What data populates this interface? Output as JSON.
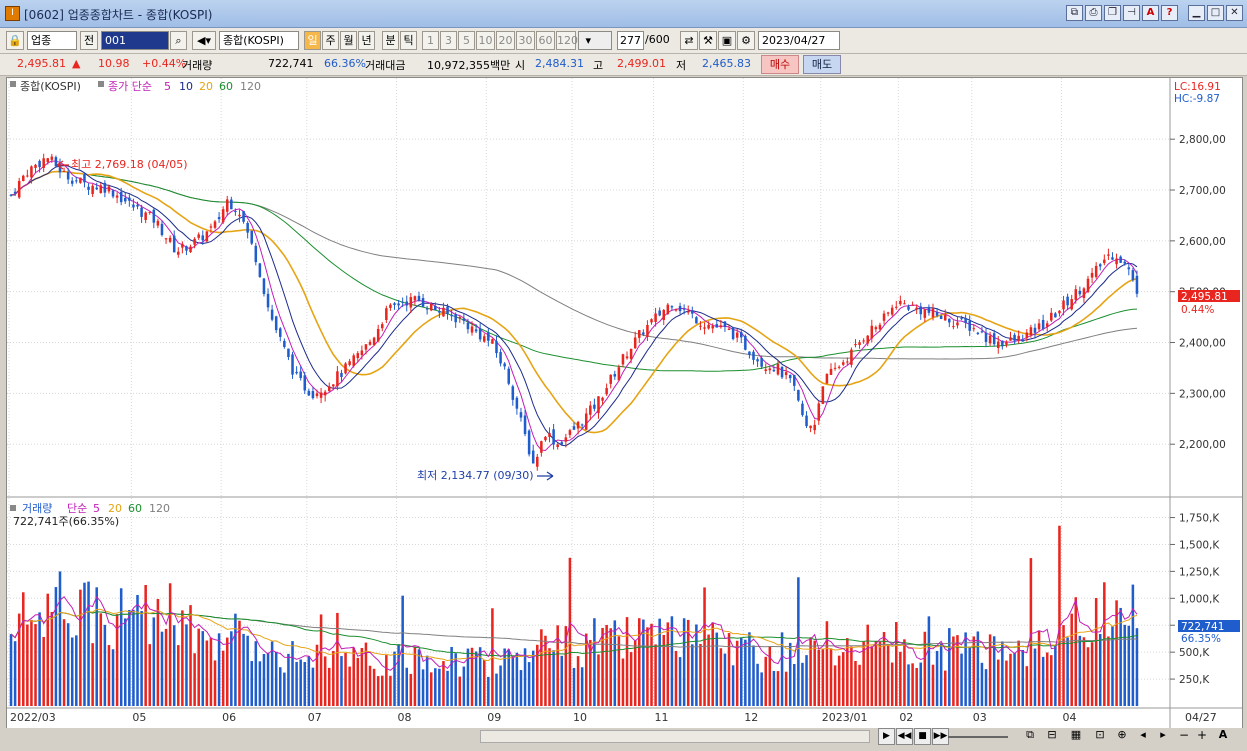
{
  "window": {
    "title": "[0602] 업종종합차트 - 종합(KOSPI)"
  },
  "toolbar": {
    "market": "업종",
    "prev": "전",
    "code": "001",
    "index_name": "종합(KOSPI)",
    "periods": [
      "일",
      "주",
      "월",
      "년",
      "분",
      "틱"
    ],
    "selected_period": "일",
    "minutes": [
      "1",
      "3",
      "5",
      "10",
      "20",
      "30",
      "60",
      "120"
    ],
    "count": "277",
    "count_max": "/600",
    "date": "2023/04/27"
  },
  "quote": {
    "price": "2,495.81",
    "arrow": "▲",
    "change": "10.98",
    "change_pct": "+0.44%",
    "volume_label": "거래량",
    "volume": "722,741",
    "volume_ratio": "66.36%",
    "amount_label": "거래대금",
    "amount": "10,972,355백만",
    "open_label": "시",
    "open": "2,484.31",
    "high_label": "고",
    "high": "2,499.01",
    "low_label": "저",
    "low": "2,465.83",
    "buy_label": "매수",
    "sell_label": "매도"
  },
  "price_panel": {
    "legend_name": "종합(KOSPI)",
    "legend_ma": "종가 단순",
    "ma_periods": [
      "5",
      "10",
      "20",
      "60",
      "120"
    ],
    "lc_label": "LC:16.91",
    "hc_label": "HC:-9.87",
    "max_label": "최고 2,769.18 (04/05)",
    "min_label": "최저 2,134.77 (09/30)",
    "last_price_tag": "2,495.81",
    "last_pct_tag": "0.44%"
  },
  "volume_panel": {
    "legend_name": "거래량",
    "legend_ma": "단순",
    "ma_periods": [
      "5",
      "20",
      "60",
      "120"
    ],
    "current_label": "722,741주(66.35%)",
    "last_tag": "722,741",
    "last_pct_tag": "66.35%"
  },
  "colors": {
    "up": "#e8251f",
    "down": "#1f5ccc",
    "ma5": "#c21fb8",
    "ma10": "#1b2a8c",
    "ma20": "#e6a415",
    "ma60": "#1b8f2e",
    "ma120": "#7f7f7f"
  },
  "chart_data": {
    "type": "candlestick",
    "title": "종합(KOSPI)",
    "price_axis": {
      "ticks": [
        "2,800,00",
        "2,700,00",
        "2,600,00",
        "2,500,00",
        "2,400,00",
        "2,300,00",
        "2,200,00"
      ],
      "values": [
        2800,
        2700,
        2600,
        2500,
        2400,
        2300,
        2200
      ],
      "range": [
        2104,
        2881
      ]
    },
    "volume_axis": {
      "ticks": [
        "1,750,K",
        "1,500,K",
        "1,250,K",
        "1,000,K",
        "750,K",
        "500,K",
        "250,K"
      ],
      "values": [
        1750,
        1500,
        1250,
        1000,
        750,
        500,
        250
      ],
      "range": [
        0,
        1820
      ],
      "unit": "K shares"
    },
    "x_labels": [
      "2022/03",
      "05",
      "06",
      "07",
      "08",
      "09",
      "10",
      "11",
      "12",
      "2023/01",
      "02",
      "03",
      "04"
    ],
    "last_label": "04/27",
    "bars": 277,
    "close_path": [
      [
        0,
        2690
      ],
      [
        5,
        2735
      ],
      [
        12,
        2765
      ],
      [
        18,
        2730
      ],
      [
        25,
        2710
      ],
      [
        32,
        2705
      ],
      [
        40,
        2670
      ],
      [
        48,
        2640
      ],
      [
        55,
        2580
      ],
      [
        62,
        2600
      ],
      [
        68,
        2630
      ],
      [
        72,
        2680
      ],
      [
        76,
        2660
      ],
      [
        82,
        2560
      ],
      [
        86,
        2460
      ],
      [
        90,
        2400
      ],
      [
        95,
        2330
      ],
      [
        100,
        2300
      ],
      [
        105,
        2315
      ],
      [
        110,
        2340
      ],
      [
        115,
        2370
      ],
      [
        120,
        2405
      ],
      [
        125,
        2460
      ],
      [
        130,
        2480
      ],
      [
        135,
        2485
      ],
      [
        140,
        2470
      ],
      [
        145,
        2455
      ],
      [
        150,
        2445
      ],
      [
        155,
        2420
      ],
      [
        160,
        2400
      ],
      [
        165,
        2340
      ],
      [
        170,
        2240
      ],
      [
        174,
        2160
      ],
      [
        178,
        2225
      ],
      [
        182,
        2200
      ],
      [
        186,
        2220
      ],
      [
        190,
        2245
      ],
      [
        195,
        2280
      ],
      [
        200,
        2330
      ],
      [
        205,
        2380
      ],
      [
        210,
        2420
      ],
      [
        215,
        2450
      ],
      [
        220,
        2480
      ],
      [
        225,
        2460
      ],
      [
        230,
        2440
      ],
      [
        235,
        2430
      ],
      [
        240,
        2420
      ],
      [
        245,
        2390
      ],
      [
        250,
        2360
      ],
      [
        255,
        2350
      ],
      [
        260,
        2320
      ],
      [
        265,
        2230
      ],
      [
        268,
        2245
      ],
      [
        270,
        2320
      ],
      [
        275,
        2350
      ],
      [
        280,
        2380
      ],
      [
        285,
        2420
      ],
      [
        290,
        2440
      ],
      [
        295,
        2480
      ],
      [
        300,
        2470
      ],
      [
        305,
        2460
      ],
      [
        310,
        2450
      ],
      [
        315,
        2440
      ],
      [
        320,
        2430
      ],
      [
        325,
        2410
      ],
      [
        330,
        2400
      ],
      [
        335,
        2405
      ],
      [
        340,
        2420
      ],
      [
        345,
        2440
      ],
      [
        350,
        2470
      ],
      [
        355,
        2500
      ],
      [
        360,
        2530
      ],
      [
        365,
        2570
      ],
      [
        368,
        2575
      ],
      [
        372,
        2545
      ],
      [
        375,
        2495.81
      ]
    ],
    "volume_level_K": [
      [
        0,
        700
      ],
      [
        10,
        900
      ],
      [
        20,
        950
      ],
      [
        40,
        800
      ],
      [
        60,
        700
      ],
      [
        80,
        600
      ],
      [
        100,
        450
      ],
      [
        120,
        420
      ],
      [
        140,
        450
      ],
      [
        160,
        430
      ],
      [
        175,
        560
      ],
      [
        195,
        600
      ],
      [
        215,
        620
      ],
      [
        235,
        560
      ],
      [
        255,
        500
      ],
      [
        275,
        580
      ],
      [
        295,
        560
      ],
      [
        315,
        520
      ],
      [
        335,
        560
      ],
      [
        355,
        800
      ],
      [
        375,
        900
      ]
    ],
    "high": {
      "value": 2769.18,
      "date": "04/05"
    },
    "low": {
      "value": 2134.77,
      "date": "09/30"
    },
    "last": {
      "close": 2495.81,
      "volume_K": 722.741
    }
  }
}
